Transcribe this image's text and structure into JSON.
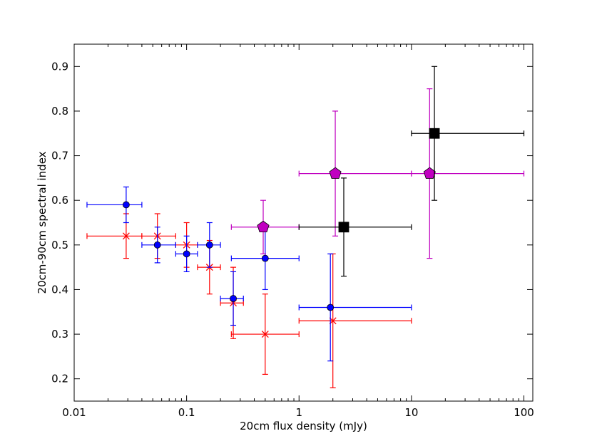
{
  "chart_data": {
    "type": "scatter",
    "title": "",
    "xlabel": "20cm flux density (mJy)",
    "ylabel": "20cm-90cm spectral index",
    "xscale": "log",
    "xlim": [
      0.01,
      120
    ],
    "ylim": [
      0.15,
      0.95
    ],
    "xticks": [
      {
        "value": 0.01,
        "label": "0.01"
      },
      {
        "value": 0.1,
        "label": "0.1"
      },
      {
        "value": 1,
        "label": "1"
      },
      {
        "value": 10,
        "label": "10"
      },
      {
        "value": 100,
        "label": "100"
      }
    ],
    "yticks": [
      {
        "value": 0.2,
        "label": "0.2"
      },
      {
        "value": 0.3,
        "label": "0.3"
      },
      {
        "value": 0.4,
        "label": "0.4"
      },
      {
        "value": 0.5,
        "label": "0.5"
      },
      {
        "value": 0.6,
        "label": "0.6"
      },
      {
        "value": 0.7,
        "label": "0.7"
      },
      {
        "value": 0.8,
        "label": "0.8"
      },
      {
        "value": 0.9,
        "label": "0.9"
      }
    ],
    "grid": false,
    "series": [
      {
        "name": "red-cross-series",
        "color": "#ff0000",
        "marker": "x",
        "points": [
          {
            "x": 0.029,
            "y": 0.52,
            "xlo": 0.013,
            "xhi": 0.04,
            "ylo": 0.47,
            "yhi": 0.57
          },
          {
            "x": 0.055,
            "y": 0.52,
            "xlo": 0.04,
            "xhi": 0.08,
            "ylo": 0.47,
            "yhi": 0.57
          },
          {
            "x": 0.1,
            "y": 0.5,
            "xlo": 0.08,
            "xhi": 0.125,
            "ylo": 0.45,
            "yhi": 0.55
          },
          {
            "x": 0.16,
            "y": 0.45,
            "xlo": 0.125,
            "xhi": 0.2,
            "ylo": 0.39,
            "yhi": 0.51
          },
          {
            "x": 0.26,
            "y": 0.37,
            "xlo": 0.2,
            "xhi": 0.32,
            "ylo": 0.29,
            "yhi": 0.45
          },
          {
            "x": 0.5,
            "y": 0.3,
            "xlo": 0.25,
            "xhi": 1.0,
            "ylo": 0.21,
            "yhi": 0.39
          },
          {
            "x": 2.0,
            "y": 0.33,
            "xlo": 1.0,
            "xhi": 10.0,
            "ylo": 0.18,
            "yhi": 0.48
          }
        ]
      },
      {
        "name": "blue-circle-series",
        "color": "#0000ff",
        "marker": "circle",
        "points": [
          {
            "x": 0.029,
            "y": 0.59,
            "xlo": 0.013,
            "xhi": 0.04,
            "ylo": 0.55,
            "yhi": 0.63
          },
          {
            "x": 0.055,
            "y": 0.5,
            "xlo": 0.04,
            "xhi": 0.08,
            "ylo": 0.46,
            "yhi": 0.54
          },
          {
            "x": 0.1,
            "y": 0.48,
            "xlo": 0.08,
            "xhi": 0.125,
            "ylo": 0.44,
            "yhi": 0.52
          },
          {
            "x": 0.16,
            "y": 0.5,
            "xlo": 0.125,
            "xhi": 0.2,
            "ylo": 0.45,
            "yhi": 0.55
          },
          {
            "x": 0.26,
            "y": 0.38,
            "xlo": 0.2,
            "xhi": 0.32,
            "ylo": 0.32,
            "yhi": 0.44
          },
          {
            "x": 0.5,
            "y": 0.47,
            "xlo": 0.25,
            "xhi": 1.0,
            "ylo": 0.4,
            "yhi": 0.54
          },
          {
            "x": 1.9,
            "y": 0.36,
            "xlo": 1.0,
            "xhi": 10.0,
            "ylo": 0.24,
            "yhi": 0.48
          }
        ]
      },
      {
        "name": "magenta-pentagon-series",
        "color": "#c000c0",
        "marker": "pentagon",
        "points": [
          {
            "x": 0.48,
            "y": 0.54,
            "xlo": 0.25,
            "xhi": 1.0,
            "ylo": 0.48,
            "yhi": 0.6
          },
          {
            "x": 2.1,
            "y": 0.66,
            "xlo": 1.0,
            "xhi": 10.0,
            "ylo": 0.52,
            "yhi": 0.8
          },
          {
            "x": 14.5,
            "y": 0.66,
            "xlo": 10.0,
            "xhi": 100.0,
            "ylo": 0.47,
            "yhi": 0.85
          }
        ]
      },
      {
        "name": "black-square-series",
        "color": "#000000",
        "marker": "square",
        "points": [
          {
            "x": 2.5,
            "y": 0.54,
            "xlo": 1.0,
            "xhi": 10.0,
            "ylo": 0.43,
            "yhi": 0.65
          },
          {
            "x": 16.0,
            "y": 0.75,
            "xlo": 10.0,
            "xhi": 100.0,
            "ylo": 0.6,
            "yhi": 0.9
          }
        ]
      }
    ]
  }
}
